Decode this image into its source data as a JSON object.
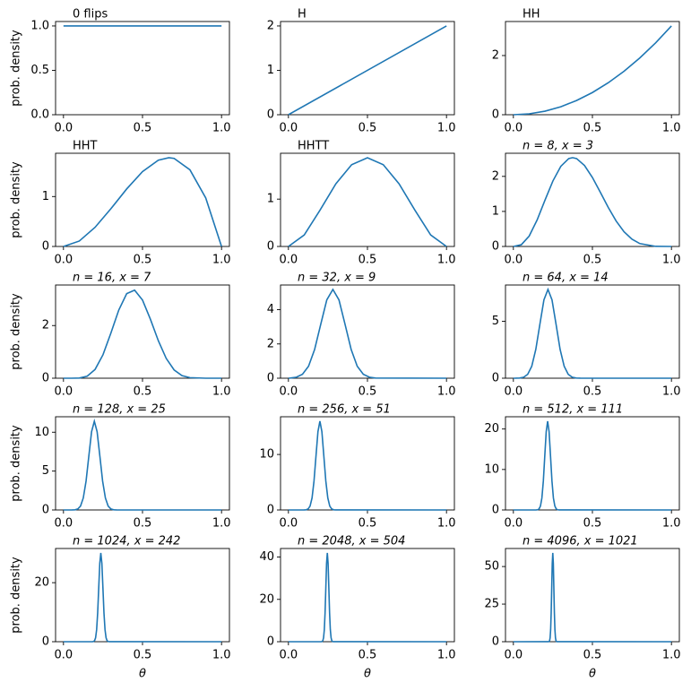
{
  "chart_data": [
    {
      "type": "line",
      "title": "0 flips",
      "ylabel": "prob. density",
      "color": "#1f77b4",
      "x": [
        0,
        1
      ],
      "values": [
        1,
        1
      ],
      "xlim": [
        -0.05,
        1.05
      ],
      "ylim": [
        0,
        1.05
      ],
      "xticks": [
        {
          "value": 0,
          "label": "0.0"
        },
        {
          "value": 0.5,
          "label": "0.5"
        },
        {
          "value": 1,
          "label": "1.0"
        }
      ],
      "yticks": [
        {
          "value": 0,
          "label": "0.0"
        },
        {
          "value": 0.5,
          "label": "0.5"
        },
        {
          "value": 1,
          "label": "1.0"
        }
      ]
    },
    {
      "type": "line",
      "title": "H",
      "color": "#1f77b4",
      "x": [
        0,
        1
      ],
      "values": [
        0,
        2
      ],
      "xlim": [
        -0.05,
        1.05
      ],
      "ylim": [
        0,
        2.1
      ],
      "xticks": [
        {
          "value": 0,
          "label": "0.0"
        },
        {
          "value": 0.5,
          "label": "0.5"
        },
        {
          "value": 1,
          "label": "1.0"
        }
      ],
      "yticks": [
        0,
        1,
        2
      ]
    },
    {
      "type": "line",
      "title": "HH",
      "color": "#1f77b4",
      "x": [
        0,
        0.1,
        0.2,
        0.3,
        0.4,
        0.5,
        0.6,
        0.7,
        0.8,
        0.9,
        1
      ],
      "values": [
        0,
        0.03,
        0.12,
        0.27,
        0.48,
        0.75,
        1.08,
        1.47,
        1.92,
        2.43,
        3
      ],
      "xlim": [
        -0.05,
        1.05
      ],
      "ylim": [
        0,
        3.15
      ],
      "xticks": [
        {
          "value": 0,
          "label": "0.0"
        },
        {
          "value": 0.5,
          "label": "0.5"
        },
        {
          "value": 1,
          "label": "1.0"
        }
      ],
      "yticks": [
        0,
        2
      ]
    },
    {
      "type": "line",
      "title": "HHT",
      "ylabel": "prob. density",
      "color": "#1f77b4",
      "x": [
        0,
        0.1,
        0.2,
        0.3,
        0.4,
        0.5,
        0.6,
        0.6667,
        0.7,
        0.8,
        0.9,
        1
      ],
      "values": [
        0,
        0.108,
        0.384,
        0.756,
        1.152,
        1.5,
        1.728,
        1.778,
        1.764,
        1.536,
        0.972,
        0
      ],
      "xlim": [
        -0.05,
        1.05
      ],
      "ylim": [
        0,
        1.867
      ],
      "xticks": [
        {
          "value": 0,
          "label": "0.0"
        },
        {
          "value": 0.5,
          "label": "0.5"
        },
        {
          "value": 1,
          "label": "1.0"
        }
      ],
      "yticks": [
        0,
        1
      ]
    },
    {
      "type": "line",
      "title": "HHTT",
      "color": "#1f77b4",
      "x": [
        0,
        0.1,
        0.2,
        0.3,
        0.4,
        0.5,
        0.6,
        0.7,
        0.8,
        0.9,
        1
      ],
      "values": [
        0,
        0.243,
        0.768,
        1.323,
        1.728,
        1.875,
        1.728,
        1.323,
        0.768,
        0.243,
        0
      ],
      "xlim": [
        -0.05,
        1.05
      ],
      "ylim": [
        0,
        1.969
      ],
      "xticks": [
        {
          "value": 0,
          "label": "0.0"
        },
        {
          "value": 0.5,
          "label": "0.5"
        },
        {
          "value": 1,
          "label": "1.0"
        }
      ],
      "yticks": [
        0,
        1
      ]
    },
    {
      "type": "line",
      "title": "n = 8, x = 3",
      "color": "#1f77b4",
      "x": [
        0,
        0.05,
        0.1,
        0.15,
        0.2,
        0.25,
        0.3,
        0.35,
        0.375,
        0.4,
        0.45,
        0.5,
        0.55,
        0.6,
        0.65,
        0.7,
        0.75,
        0.8,
        0.9,
        1
      ],
      "values": [
        0,
        0.0488,
        0.2976,
        0.7547,
        1.3212,
        1.8688,
        2.2871,
        2.5073,
        2.5347,
        2.5082,
        2.3115,
        1.9688,
        1.5471,
        1.1148,
        0.7269,
        0.4201,
        0.2077,
        0.0826,
        0.0037,
        0
      ],
      "xlim": [
        -0.05,
        1.05
      ],
      "ylim": [
        0,
        2.66
      ],
      "xticks": [
        {
          "value": 0,
          "label": "0.0"
        },
        {
          "value": 0.5,
          "label": "0.5"
        },
        {
          "value": 1,
          "label": "1.0"
        }
      ],
      "yticks": [
        0,
        1,
        2
      ]
    },
    {
      "type": "line",
      "title": "n = 16, x = 7",
      "ylabel": "prob. density",
      "color": "#1f77b4",
      "x": [
        0,
        0.05,
        0.1,
        0.15,
        0.2,
        0.25,
        0.3,
        0.35,
        0.4,
        0.45,
        0.5,
        0.55,
        0.6,
        0.65,
        0.7,
        0.75,
        0.8,
        0.9,
        1
      ],
      "values": [
        0,
        0.0001,
        0.0075,
        0.077,
        0.334,
        0.891,
        1.716,
        2.591,
        3.212,
        3.344,
        2.968,
        2.239,
        1.426,
        0.752,
        0.315,
        0.099,
        0.0209,
        0.0001,
        0
      ],
      "xlim": [
        -0.05,
        1.05
      ],
      "ylim": [
        0,
        3.54
      ],
      "xticks": [
        {
          "value": 0,
          "label": "0.0"
        },
        {
          "value": 0.5,
          "label": "0.5"
        },
        {
          "value": 1,
          "label": "1.0"
        }
      ],
      "yticks": [
        0,
        2
      ]
    },
    {
      "type": "line",
      "title": "n = 32, x = 9",
      "color": "#1f77b4",
      "x": [
        0,
        0.0118,
        0.0503,
        0.0888,
        0.1273,
        0.1658,
        0.2043,
        0.2428,
        0.2813,
        0.3197,
        0.3583,
        0.3968,
        0.4353,
        0.4738,
        0.5123,
        0.5508,
        1
      ],
      "values": [
        0,
        0.0113,
        0.0575,
        0.228,
        0.701,
        1.682,
        3.142,
        4.572,
        5.181,
        4.572,
        3.142,
        1.682,
        0.701,
        0.228,
        0.0575,
        0.0113,
        0
      ],
      "xlim": [
        -0.05,
        1.05
      ],
      "ylim": [
        0,
        5.44
      ],
      "xticks": [
        {
          "value": 0,
          "label": "0.0"
        },
        {
          "value": 0.5,
          "label": "0.5"
        },
        {
          "value": 1,
          "label": "1.0"
        }
      ],
      "yticks": [
        0,
        2,
        4
      ]
    },
    {
      "type": "line",
      "title": "n = 64, x = 14",
      "color": "#1f77b4",
      "x": [
        0,
        0.014,
        0.0395,
        0.0652,
        0.0907,
        0.1163,
        0.1419,
        0.1676,
        0.1932,
        0.2188,
        0.2444,
        0.27,
        0.2956,
        0.3212,
        0.3468,
        0.3724,
        0.398,
        0.4236,
        1
      ],
      "values": [
        0,
        0.0026,
        0.017,
        0.0865,
        0.342,
        1.055,
        2.53,
        4.726,
        6.876,
        7.792,
        6.876,
        4.726,
        2.53,
        1.055,
        0.342,
        0.0865,
        0.017,
        0.0026,
        0
      ],
      "xlim": [
        -0.05,
        1.05
      ],
      "ylim": [
        0,
        8.18
      ],
      "xticks": [
        {
          "value": 0,
          "label": "0.0"
        },
        {
          "value": 0.5,
          "label": "0.5"
        },
        {
          "value": 1,
          "label": "1.0"
        }
      ],
      "yticks": [
        0,
        5
      ]
    },
    {
      "type": "line",
      "title": "n = 128, x = 25",
      "ylabel": "prob. density",
      "color": "#1f77b4",
      "x": [
        0,
        0.0555,
        0.073,
        0.0905,
        0.1079,
        0.1254,
        0.1429,
        0.1604,
        0.1778,
        0.1953,
        0.2128,
        0.2303,
        0.2477,
        0.2652,
        0.2827,
        0.3002,
        0.3176,
        0.3351,
        1
      ],
      "values": [
        0,
        0.004,
        0.025,
        0.127,
        0.502,
        1.545,
        3.706,
        6.923,
        10.074,
        11.415,
        10.074,
        6.923,
        3.706,
        1.545,
        0.502,
        0.127,
        0.025,
        0.004,
        0
      ],
      "xlim": [
        -0.05,
        1.05
      ],
      "ylim": [
        0,
        11.99
      ],
      "xticks": [
        {
          "value": 0,
          "label": "0.0"
        },
        {
          "value": 0.5,
          "label": "0.5"
        },
        {
          "value": 1,
          "label": "1.0"
        }
      ],
      "yticks": [
        0,
        5,
        10
      ]
    },
    {
      "type": "line",
      "title": "n = 256, x = 51",
      "color": "#1f77b4",
      "x": [
        0,
        0.0995,
        0.112,
        0.1244,
        0.1369,
        0.1494,
        0.1618,
        0.1743,
        0.1868,
        0.1992,
        0.2117,
        0.2241,
        0.2366,
        0.2491,
        0.2615,
        0.274,
        0.2865,
        0.2989,
        1
      ],
      "values": [
        0,
        0.005,
        0.035,
        0.178,
        0.703,
        2.166,
        5.196,
        9.707,
        14.124,
        16.004,
        14.124,
        9.707,
        5.196,
        2.166,
        0.703,
        0.178,
        0.035,
        0.005,
        0
      ],
      "xlim": [
        -0.05,
        1.05
      ],
      "ylim": [
        0,
        16.8
      ],
      "xticks": [
        {
          "value": 0,
          "label": "0.0"
        },
        {
          "value": 0.5,
          "label": "0.5"
        },
        {
          "value": 1,
          "label": "1.0"
        }
      ],
      "yticks": [
        0,
        10
      ]
    },
    {
      "type": "line",
      "title": "n = 512, x = 111",
      "color": "#1f77b4",
      "x": [
        0,
        0.144,
        0.1531,
        0.1622,
        0.1713,
        0.1804,
        0.1895,
        0.1986,
        0.2077,
        0.2168,
        0.2259,
        0.235,
        0.2441,
        0.2532,
        0.2623,
        0.2714,
        0.2805,
        0.2896,
        1
      ],
      "values": [
        0,
        0.0074,
        0.048,
        0.244,
        0.964,
        2.968,
        7.12,
        13.302,
        19.354,
        21.931,
        19.354,
        13.302,
        7.12,
        2.968,
        0.964,
        0.244,
        0.048,
        0.0074,
        0
      ],
      "xlim": [
        -0.05,
        1.05
      ],
      "ylim": [
        0,
        23.03
      ],
      "xticks": [
        {
          "value": 0,
          "label": "0.0"
        },
        {
          "value": 0.5,
          "label": "0.5"
        },
        {
          "value": 1,
          "label": "1.0"
        }
      ],
      "yticks": [
        0,
        10,
        20
      ]
    },
    {
      "type": "line",
      "title": "n = 1024, x = 242",
      "ylabel": "prob. density",
      "xlabel": "θ",
      "color": "#1f77b4",
      "x": [
        0,
        0.1833,
        0.1899,
        0.1965,
        0.2032,
        0.2098,
        0.2164,
        0.2231,
        0.2297,
        0.2363,
        0.243,
        0.2496,
        0.2562,
        0.2629,
        0.2695,
        0.2761,
        0.2828,
        0.2894,
        1
      ],
      "values": [
        0,
        0.01,
        0.066,
        0.334,
        1.321,
        4.07,
        9.763,
        18.24,
        26.539,
        30.072,
        26.539,
        18.24,
        9.763,
        4.07,
        1.321,
        0.334,
        0.066,
        0.01,
        0
      ],
      "xlim": [
        -0.05,
        1.05
      ],
      "ylim": [
        0,
        31.58
      ],
      "xticks": [
        {
          "value": 0,
          "label": "0.0"
        },
        {
          "value": 0.5,
          "label": "0.5"
        },
        {
          "value": 1,
          "label": "1.0"
        }
      ],
      "yticks": [
        0,
        20
      ]
    },
    {
      "type": "line",
      "title": "n = 2048, x = 504",
      "xlabel": "θ",
      "color": "#1f77b4",
      "x": [
        0,
        0.208,
        0.2128,
        0.2175,
        0.2223,
        0.2271,
        0.2318,
        0.2366,
        0.2413,
        0.2461,
        0.2509,
        0.2556,
        0.2604,
        0.2651,
        0.2699,
        0.2746,
        0.2794,
        0.2841,
        1
      ],
      "values": [
        0,
        0.014,
        0.091,
        0.466,
        1.842,
        5.675,
        13.613,
        25.432,
        37.004,
        41.931,
        37.004,
        25.432,
        13.613,
        5.675,
        1.842,
        0.466,
        0.091,
        0.014,
        0
      ],
      "xlim": [
        -0.05,
        1.05
      ],
      "ylim": [
        0,
        44.03
      ],
      "xticks": [
        {
          "value": 0,
          "label": "0.0"
        },
        {
          "value": 0.5,
          "label": "0.5"
        },
        {
          "value": 1,
          "label": "1.0"
        }
      ],
      "yticks": [
        0,
        20,
        40
      ]
    },
    {
      "type": "line",
      "title": "n = 4096, x = 1021",
      "xlabel": "θ",
      "color": "#1f77b4",
      "x": [
        0,
        0.2222,
        0.2256,
        0.229,
        0.2324,
        0.2357,
        0.2391,
        0.2425,
        0.2459,
        0.2493,
        0.2527,
        0.256,
        0.2594,
        0.2628,
        0.2662,
        0.2696,
        0.2729,
        0.2763,
        1
      ],
      "values": [
        0,
        0.02,
        0.129,
        0.656,
        2.594,
        7.989,
        19.166,
        35.806,
        52.098,
        59.034,
        52.098,
        35.806,
        19.166,
        7.989,
        2.594,
        0.656,
        0.129,
        0.02,
        0
      ],
      "xlim": [
        -0.05,
        1.05
      ],
      "ylim": [
        0,
        61.99
      ],
      "xticks": [
        {
          "value": 0,
          "label": "0.0"
        },
        {
          "value": 0.5,
          "label": "0.5"
        },
        {
          "value": 1,
          "label": "1.0"
        }
      ],
      "yticks": [
        0,
        25,
        50
      ]
    }
  ]
}
